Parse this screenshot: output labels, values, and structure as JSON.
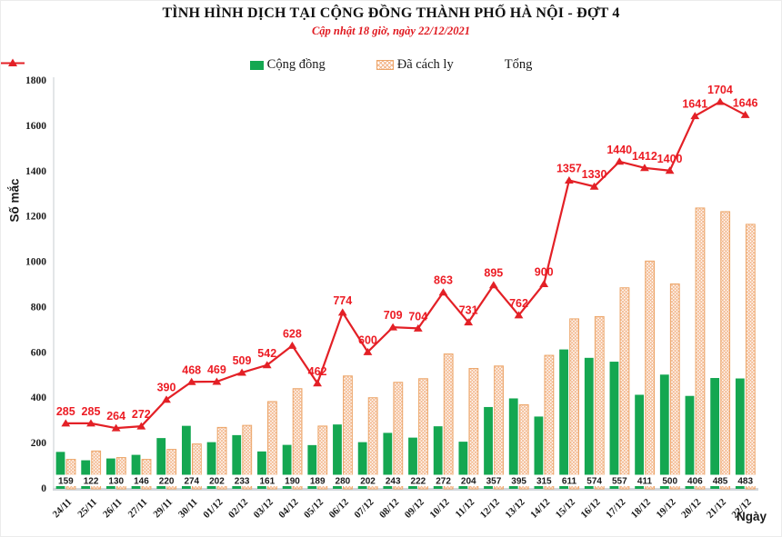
{
  "header": {
    "title": "TÌNH HÌNH DỊCH TẠI CỘNG ĐỒNG THÀNH PHỐ HÀ NỘI - ĐỢT 4",
    "subtitle": "Cập nhật 18 giờ, ngày 22/12/2021"
  },
  "legend": {
    "community": "Cộng đồng",
    "quarantined": "Đã cách ly",
    "total": "Tổng"
  },
  "axes": {
    "y_label": "Số mắc",
    "x_label": "Ngày"
  },
  "colors": {
    "green": "#14a751",
    "hatch_line": "#f2b183",
    "hatch_border": "#eca568",
    "red_line": "#e32026",
    "red_label": "#ec1c24",
    "axis": "#d2d6da"
  },
  "chart_data": {
    "type": "bar",
    "subtype": "grouped-bars-with-line",
    "title": "TÌNH HÌNH DỊCH TẠI CỘNG ĐỒNG THÀNH PHỐ HÀ NỘI - ĐỢT 4",
    "subtitle": "Cập nhật 18 giờ, ngày 22/12/2021",
    "xlabel": "Ngày",
    "ylabel": "Số mắc",
    "ylim": [
      0,
      1800
    ],
    "yticks": [
      0,
      200,
      400,
      600,
      800,
      1000,
      1200,
      1400,
      1600,
      1800
    ],
    "grid": false,
    "legend_position": "top",
    "categories": [
      "24/11",
      "25/11",
      "26/11",
      "27/11",
      "29/11",
      "30/11",
      "01/12",
      "02/12",
      "03/12",
      "04/12",
      "05/12",
      "06/12",
      "07/12",
      "08/12",
      "09/12",
      "10/12",
      "11/12",
      "12/12",
      "13/12",
      "14/12",
      "15/12",
      "16/12",
      "17/12",
      "18/12",
      "19/12",
      "20/12",
      "21/12",
      "22/12"
    ],
    "series": [
      {
        "name": "Cộng đồng",
        "type": "bar",
        "color": "#14a751",
        "labels_visible": true,
        "values": [
          159,
          122,
          130,
          146,
          220,
          274,
          202,
          233,
          161,
          190,
          189,
          280,
          202,
          243,
          222,
          272,
          204,
          357,
          395,
          315,
          611,
          574,
          557,
          411,
          500,
          406,
          485,
          483
        ]
      },
      {
        "name": "Đã cách ly",
        "type": "bar",
        "pattern": "diagonal-crosshatch",
        "color": "#eca568",
        "labels_visible": false,
        "values": [
          126,
          163,
          134,
          126,
          170,
          194,
          267,
          276,
          381,
          438,
          273,
          494,
          398,
          466,
          482,
          591,
          527,
          538,
          367,
          585,
          746,
          756,
          883,
          1001,
          900,
          1235,
          1219,
          1163
        ]
      },
      {
        "name": "Tổng",
        "type": "line",
        "marker": "triangle-up",
        "color": "#e32026",
        "labels_visible": true,
        "values": [
          285,
          285,
          264,
          272,
          390,
          468,
          469,
          509,
          542,
          628,
          462,
          774,
          600,
          709,
          704,
          863,
          731,
          895,
          762,
          900,
          1357,
          1330,
          1440,
          1412,
          1400,
          1641,
          1704,
          1646
        ]
      }
    ]
  }
}
